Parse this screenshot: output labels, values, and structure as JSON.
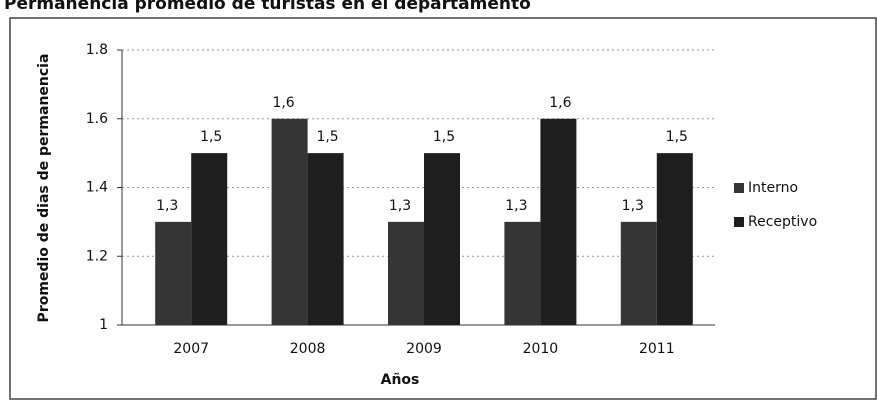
{
  "chart_data": {
    "type": "bar",
    "title": "Permanencia promedio de turistas en el departamento",
    "categories": [
      "2007",
      "2008",
      "2009",
      "2010",
      "2011"
    ],
    "series": [
      {
        "name": "Interno",
        "color": "#353535",
        "values": [
          1.3,
          1.6,
          1.3,
          1.3,
          1.3
        ],
        "value_labels": [
          "1,3",
          "1,6",
          "1,3",
          "1,3",
          "1,3"
        ]
      },
      {
        "name": "Receptivo",
        "color": "#1e1e1e",
        "values": [
          1.5,
          1.5,
          1.5,
          1.6,
          1.5
        ],
        "value_labels": [
          "1,5",
          "1,5",
          "1,5",
          "1,6",
          "1,5"
        ]
      }
    ],
    "xlabel": "Años",
    "ylabel": "Promedio de dias de permanencia",
    "ylim": [
      1,
      1.8
    ],
    "yticks": [
      1,
      1.2,
      1.4,
      1.6,
      1.8
    ],
    "grid": true,
    "legend": "right"
  }
}
